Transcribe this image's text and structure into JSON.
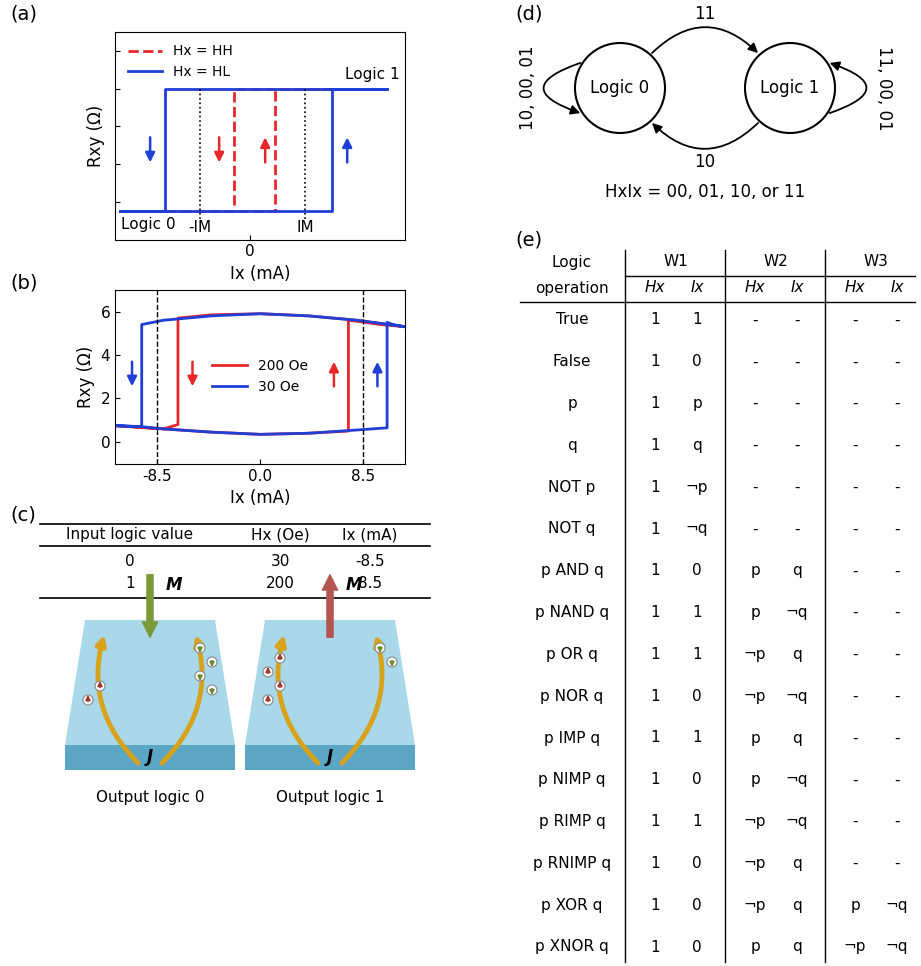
{
  "panel_labels": [
    "(a)",
    "(b)",
    "(c)",
    "(d)",
    "(e)"
  ],
  "chart_data": [
    {
      "type": "line",
      "xlabel": "Ix (mA)",
      "ylabel": "Rxy (Ω)",
      "xlim": [
        -13.5,
        15.5
      ],
      "ylim": [
        0,
        11
      ],
      "xticks": [
        0
      ],
      "yticks": [
        2,
        4,
        6,
        8,
        10
      ],
      "tick_labels": "x",
      "legend": "upper left",
      "series": [
        {
          "name": "Hx = HH",
          "color": "#e8262a",
          "line_style": "dashed",
          "x": [
            -13,
            2.5,
            2.5,
            13.7,
            -1.6,
            -1.6,
            -13
          ],
          "values": [
            1.5,
            1.5,
            8,
            8,
            8,
            1.5,
            1.5
          ]
        },
        {
          "name": "Hx = HL",
          "color": "#1f3fd6",
          "line_style": "solid",
          "x": [
            -13,
            8.2,
            8.2,
            13.7,
            -8.5,
            -8.5,
            -13
          ],
          "values": [
            1.5,
            1.5,
            8,
            8,
            8,
            1.5,
            1.5
          ]
        }
      ],
      "ref_lines": [
        {
          "value": -5,
          "label": "-IM"
        },
        {
          "value": 5.5,
          "label": "IM"
        }
      ],
      "annotations": {
        "upper": "Logic 1",
        "lower": "Logic 0"
      }
    },
    {
      "type": "line",
      "xlabel": "Ix (mA)",
      "ylabel": "Rxy (Ω)",
      "xlim": [
        -12,
        12
      ],
      "ylim": [
        -1,
        7
      ],
      "xticks": [
        -8.5,
        {
          "value": 0,
          "label": "0.0"
        },
        8.5
      ],
      "yticks": [
        0,
        2,
        4,
        6
      ],
      "legend": "center",
      "series": [
        {
          "name": "200 Oe",
          "color": "#e8262a",
          "line_style": "solid",
          "x": [
            -12,
            -8,
            -4,
            0,
            4,
            7.3,
            7.3,
            8,
            10,
            12,
            12,
            8,
            4,
            0,
            -4,
            -6.8,
            -6.8,
            -8,
            -12
          ],
          "values": [
            0.75,
            0.6,
            0.45,
            0.35,
            0.4,
            0.5,
            5.6,
            5.55,
            5.4,
            5.3,
            5.3,
            5.6,
            5.8,
            5.9,
            5.85,
            5.7,
            0.8,
            0.6,
            0.75
          ]
        },
        {
          "name": "30 Oe",
          "color": "#1f3fd6",
          "line_style": "solid",
          "x": [
            -12,
            -9.8,
            -8,
            -4,
            0,
            4,
            8,
            10.5,
            10.5,
            11,
            12,
            12,
            10,
            8,
            4,
            0,
            -4,
            -8,
            -9.8,
            -9.8,
            -12
          ],
          "values": [
            0.75,
            0.7,
            0.6,
            0.45,
            0.35,
            0.4,
            0.55,
            0.65,
            5.5,
            5.4,
            5.3,
            5.3,
            5.45,
            5.6,
            5.8,
            5.9,
            5.8,
            5.6,
            5.4,
            0.7,
            0.75
          ]
        }
      ],
      "ref_lines": [
        {
          "value": -8.5
        },
        {
          "value": 8.5
        }
      ]
    }
  ],
  "table_c": {
    "columns": [
      "Input logic value",
      "Hx (Oe)",
      "Ix (mA)"
    ],
    "rows": [
      [
        "0",
        "30",
        "-8.5"
      ],
      [
        "1",
        "200",
        "8.5"
      ]
    ]
  },
  "schematics_c": [
    {
      "magnetization": "M",
      "current": "J",
      "caption": "Output logic 0"
    },
    {
      "magnetization": "M",
      "current": "J",
      "caption": "Output logic 1"
    }
  ],
  "diagram_d": {
    "nodes": [
      "Logic 0",
      "Logic 1"
    ],
    "edges": [
      {
        "from": 0,
        "to": 1,
        "label": "11"
      },
      {
        "from": 1,
        "to": 0,
        "label": "10"
      },
      {
        "from": 0,
        "to": 0,
        "label": "10, 00, 01"
      },
      {
        "from": 1,
        "to": 1,
        "label": "11, 00, 01"
      }
    ],
    "caption": "HxIx = 00, 01, 10, or 11"
  },
  "table_e": {
    "header": {
      "first": [
        "Logic",
        "operation"
      ],
      "groups": [
        "W1",
        "W2",
        "W3"
      ],
      "sub": [
        "Hx",
        "Ix"
      ]
    },
    "rows": [
      [
        "True",
        "1",
        "1",
        "-",
        "-",
        "-",
        "-"
      ],
      [
        "False",
        "1",
        "0",
        "-",
        "-",
        "-",
        "-"
      ],
      [
        "p",
        "1",
        "p",
        "-",
        "-",
        "-",
        "-"
      ],
      [
        "q",
        "1",
        "q",
        "-",
        "-",
        "-",
        "-"
      ],
      [
        "NOT p",
        "1",
        "¬p",
        "-",
        "-",
        "-",
        "-"
      ],
      [
        "NOT q",
        "1",
        "¬q",
        "-",
        "-",
        "-",
        "-"
      ],
      [
        "p AND q",
        "1",
        "0",
        "p",
        "q",
        "-",
        "-"
      ],
      [
        "p NAND q",
        "1",
        "1",
        "p",
        "¬q",
        "-",
        "-"
      ],
      [
        "p OR q",
        "1",
        "1",
        "¬p",
        "q",
        "-",
        "-"
      ],
      [
        "p NOR q",
        "1",
        "0",
        "¬p",
        "¬q",
        "-",
        "-"
      ],
      [
        "p IMP q",
        "1",
        "1",
        "p",
        "q",
        "-",
        "-"
      ],
      [
        "p NIMP q",
        "1",
        "0",
        "p",
        "¬q",
        "-",
        "-"
      ],
      [
        "p RIMP q",
        "1",
        "1",
        "¬p",
        "¬q",
        "-",
        "-"
      ],
      [
        "p RNIMP q",
        "1",
        "0",
        "¬p",
        "q",
        "-",
        "-"
      ],
      [
        "p XOR q",
        "1",
        "0",
        "¬p",
        "q",
        "p",
        "¬q"
      ],
      [
        "p XNOR q",
        "1",
        "0",
        "p",
        "q",
        "¬p",
        "¬q"
      ]
    ]
  }
}
